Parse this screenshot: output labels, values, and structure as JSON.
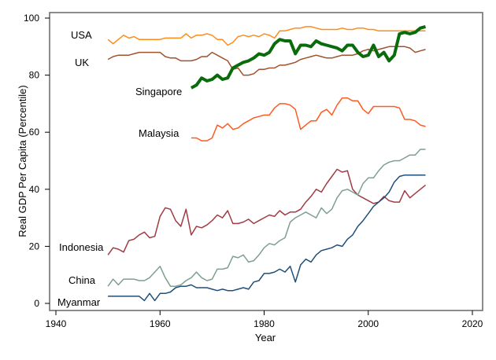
{
  "chart_data": {
    "type": "line",
    "title": "",
    "xlabel": "Year",
    "ylabel": "Real GDP Per Capita (Percentile)",
    "xlim": [
      1940,
      2020
    ],
    "ylim": [
      0,
      100
    ],
    "xticks": [
      "1940",
      "1960",
      "1980",
      "2000",
      "2020"
    ],
    "yticks": [
      "0",
      "20",
      "40",
      "60",
      "80",
      "100"
    ],
    "grid": false,
    "legend": "none (series labelled directly on the lines)",
    "series": [
      {
        "name": "USA",
        "color": "#ff8c1a",
        "emphasis": false,
        "years": [
          1950,
          2011
        ],
        "values": [
          92.5,
          91,
          92.5,
          94,
          93,
          93.5,
          92.5,
          92.5,
          92.5,
          92.5,
          92.5,
          93,
          93,
          93,
          93,
          94.5,
          93,
          94,
          94,
          94.5,
          94,
          92.5,
          92.5,
          90.5,
          91.5,
          93.5,
          94,
          93.5,
          94,
          93.5,
          94.5,
          94,
          93,
          95.5,
          95.5,
          96,
          96.5,
          96.5,
          97,
          97,
          96.5,
          96,
          96,
          96,
          96,
          96.5,
          96,
          96,
          96.5,
          96.5,
          96,
          96,
          95.5,
          95.5,
          95.5,
          95.5,
          95.5,
          95.5,
          95.5,
          95.5,
          95.5,
          95.5
        ]
      },
      {
        "name": "UK",
        "color": "#a0522d",
        "emphasis": false,
        "years": [
          1950,
          2011
        ],
        "values": [
          85.5,
          86.5,
          87,
          87,
          87,
          87.5,
          88,
          88,
          88,
          88,
          88,
          86.5,
          86,
          86,
          85,
          85,
          85,
          85.5,
          86.5,
          86.5,
          88,
          87,
          86,
          85,
          82,
          82.5,
          80,
          80,
          80.5,
          82,
          82,
          82.5,
          82.5,
          83.5,
          83.5,
          84,
          84.5,
          85.5,
          86,
          86.5,
          87,
          86.5,
          86,
          86,
          86.5,
          87,
          87,
          87,
          87.5,
          88.5,
          89,
          88.5,
          89,
          89.5,
          90,
          90,
          90,
          90,
          89.5,
          88,
          88.5,
          89
        ]
      },
      {
        "name": "Singapore",
        "color": "#0a6b0a",
        "emphasis": true,
        "years": [
          1966,
          2011
        ],
        "values": [
          75.5,
          76.5,
          79,
          78,
          78.5,
          80,
          78.5,
          79,
          82.5,
          83.5,
          84.5,
          85,
          86,
          87.5,
          87,
          88,
          91,
          92.5,
          92,
          92,
          87.5,
          90.5,
          90.5,
          90,
          92,
          91,
          90.5,
          90,
          89.5,
          88.5,
          90.5,
          90.5,
          88,
          86.5,
          87,
          90.5,
          86.5,
          88,
          85,
          87,
          94.5,
          95,
          94.5,
          95,
          96.5,
          97
        ]
      },
      {
        "name": "Malaysia",
        "color": "#ff5a1f",
        "emphasis": false,
        "years": [
          1966,
          2011
        ],
        "values": [
          58,
          58,
          57,
          57,
          58,
          62.5,
          61.5,
          63,
          61,
          61.5,
          63,
          64,
          65,
          65.5,
          66,
          66,
          68.5,
          70,
          70,
          69.5,
          68,
          61,
          62.5,
          64,
          64,
          67,
          68,
          66,
          69.5,
          72,
          72,
          71,
          71,
          68,
          66.5,
          69,
          69,
          69,
          69,
          69,
          68.5,
          64.5,
          64.5,
          64,
          62.5,
          62
        ]
      },
      {
        "name": "Indonesia",
        "color": "#a23a44",
        "emphasis": false,
        "years": [
          1950,
          2011
        ],
        "values": [
          17,
          19.5,
          19,
          18,
          22,
          22.5,
          24,
          25,
          23,
          23.5,
          30.5,
          33.5,
          33,
          29,
          27,
          33,
          24,
          27,
          26.5,
          27.5,
          29,
          31,
          30,
          32.5,
          28,
          28,
          28.5,
          29.5,
          28,
          29,
          30,
          31,
          30.5,
          32.5,
          31,
          32,
          32,
          33,
          35.5,
          37.5,
          40,
          39,
          42,
          44.5,
          47,
          46,
          46.5,
          40,
          38,
          37,
          36,
          35,
          35.5,
          37.5,
          36,
          35.5,
          35.5,
          39.5,
          37,
          38.5,
          40,
          41.5
        ]
      },
      {
        "name": "China",
        "color": "#7f9f8f",
        "emphasis": false,
        "years": [
          1950,
          2011
        ],
        "values": [
          6,
          8.5,
          6.5,
          8.5,
          8.5,
          8.5,
          8,
          8,
          9,
          11,
          13,
          9,
          6,
          6,
          6.5,
          8,
          9,
          11,
          9,
          8,
          8.5,
          12,
          12,
          12.5,
          16.5,
          16,
          17,
          14.5,
          15,
          17,
          19.5,
          21,
          20.5,
          22,
          23,
          28.5,
          30,
          31,
          32,
          31,
          30,
          33.5,
          31.5,
          33,
          37,
          39.5,
          40,
          39,
          38,
          42,
          44,
          44,
          46.5,
          48.5,
          49.5,
          50,
          50,
          51,
          52,
          52,
          54,
          54
        ]
      },
      {
        "name": "Myanmar",
        "color": "#1f4e79",
        "emphasis": false,
        "years": [
          1950,
          2011
        ],
        "values": [
          2.5,
          2.5,
          2.5,
          2.5,
          2.5,
          2.5,
          2.5,
          1,
          3.5,
          1,
          3.5,
          3.5,
          4,
          5.5,
          6,
          6,
          6.5,
          5.5,
          5.5,
          5.5,
          5,
          4.5,
          5,
          4.5,
          4.5,
          5,
          5.5,
          5,
          7.5,
          8,
          10.5,
          10.5,
          11,
          12,
          11,
          13,
          7.5,
          13.5,
          15.5,
          14.5,
          17,
          18.5,
          19,
          19.5,
          20.5,
          20,
          22.5,
          24,
          27,
          29,
          31.5,
          34,
          35.5,
          37,
          39,
          42.5,
          44.5,
          45,
          45,
          45,
          45,
          45
        ]
      }
    ]
  }
}
